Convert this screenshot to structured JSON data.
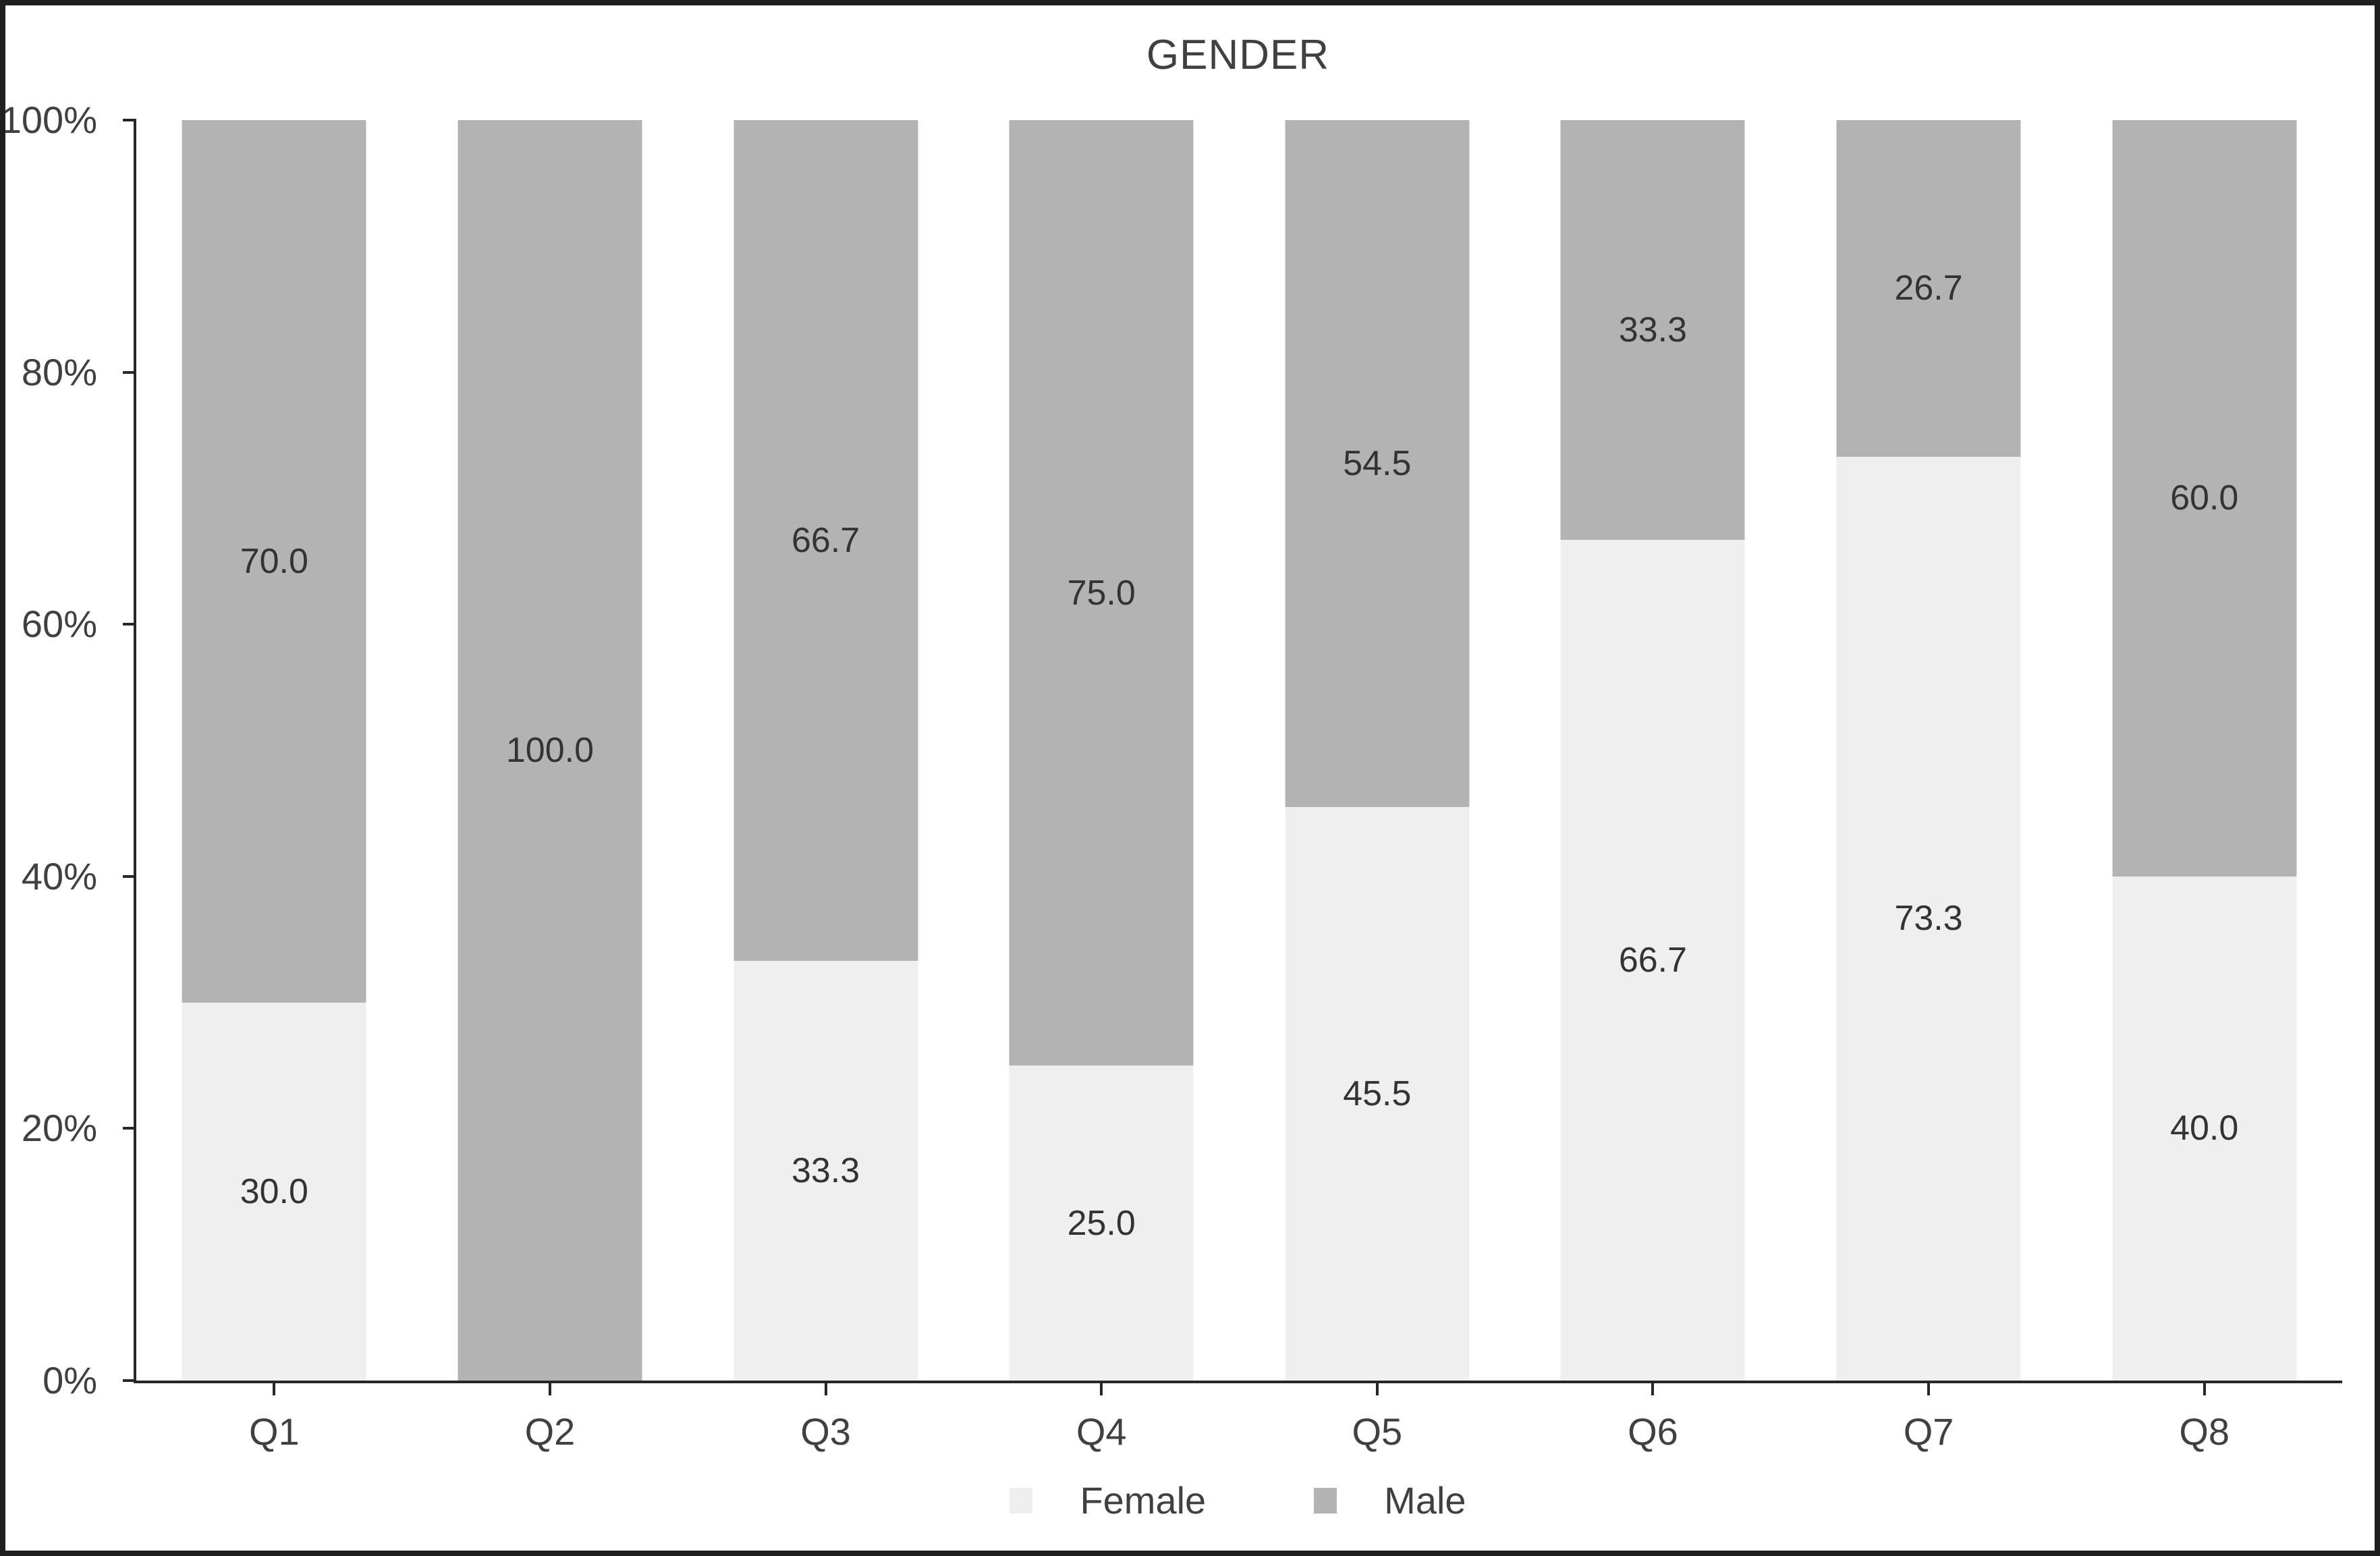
{
  "window": {
    "background": "#ffffff",
    "border_color": "#1f1f1f"
  },
  "colors": {
    "female_series": "#efefef",
    "male_series": "#b3b3b3",
    "axis_line": "#262626",
    "axis_text": "#404040",
    "value_label_text": "#333333",
    "title_text": "#404040"
  },
  "chart_data": {
    "type": "bar",
    "variant": "100-percent-stacked-column",
    "title": "GENDER",
    "categories": [
      "Q1",
      "Q2",
      "Q3",
      "Q4",
      "Q5",
      "Q6",
      "Q7",
      "Q8"
    ],
    "series": [
      {
        "name": "Female",
        "color": "#efefef",
        "values": [
          30.0,
          0.0,
          33.3,
          25.0,
          45.5,
          66.7,
          73.3,
          40.0
        ]
      },
      {
        "name": "Male",
        "color": "#b3b3b3",
        "values": [
          70.0,
          100.0,
          66.7,
          75.0,
          54.5,
          33.3,
          26.7,
          60.0
        ]
      }
    ],
    "value_labels": [
      {
        "name": "Female",
        "labels": [
          "30.0",
          "",
          "33.3",
          "25.0",
          "45.5",
          "66.7",
          "73.3",
          "40.0"
        ]
      },
      {
        "name": "Male",
        "labels": [
          "70.0",
          "100.0",
          "66.7",
          "75.0",
          "54.5",
          "33.3",
          "26.7",
          "60.0"
        ]
      }
    ],
    "y_axis": {
      "min": 0,
      "max": 100,
      "tick_labels": [
        "0%",
        "20%",
        "40%",
        "60%",
        "80%",
        "100%"
      ]
    },
    "x_axis": {
      "tick_marks": "center-of-category"
    },
    "legend": {
      "position": "bottom",
      "entries": [
        "Female",
        "Male"
      ]
    },
    "grid": false
  }
}
